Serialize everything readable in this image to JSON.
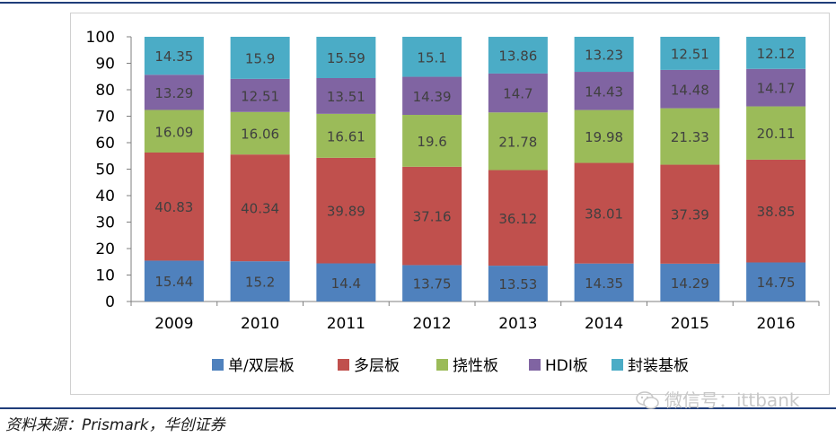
{
  "source": "资料来源：Prismark，华创证券",
  "watermark": "微信号：ittbank",
  "chart_data": {
    "type": "bar",
    "stacked": true,
    "categories": [
      "2009",
      "2010",
      "2011",
      "2012",
      "2013",
      "2014",
      "2015",
      "2016"
    ],
    "ylim": [
      0,
      100
    ],
    "yticks": [
      0,
      10,
      20,
      30,
      40,
      50,
      60,
      70,
      80,
      90,
      100
    ],
    "legend_position": "bottom",
    "series": [
      {
        "name": "单/双层板",
        "color": "#4f81bd",
        "values": [
          15.44,
          15.2,
          14.4,
          13.75,
          13.53,
          14.35,
          14.29,
          14.75
        ]
      },
      {
        "name": "多层板",
        "color": "#c0504d",
        "values": [
          40.83,
          40.34,
          39.89,
          37.16,
          36.12,
          38.01,
          37.39,
          38.85
        ]
      },
      {
        "name": "挠性板",
        "color": "#9bbb59",
        "values": [
          16.09,
          16.06,
          16.61,
          19.6,
          21.78,
          19.98,
          21.33,
          20.11
        ]
      },
      {
        "name": "HDI板",
        "color": "#8064a2",
        "values": [
          13.29,
          12.51,
          13.51,
          14.39,
          14.7,
          14.43,
          14.48,
          14.17
        ]
      },
      {
        "name": "封装基板",
        "color": "#4bacc6",
        "values": [
          14.35,
          15.9,
          15.59,
          15.1,
          13.86,
          13.23,
          12.51,
          12.12
        ]
      }
    ]
  }
}
